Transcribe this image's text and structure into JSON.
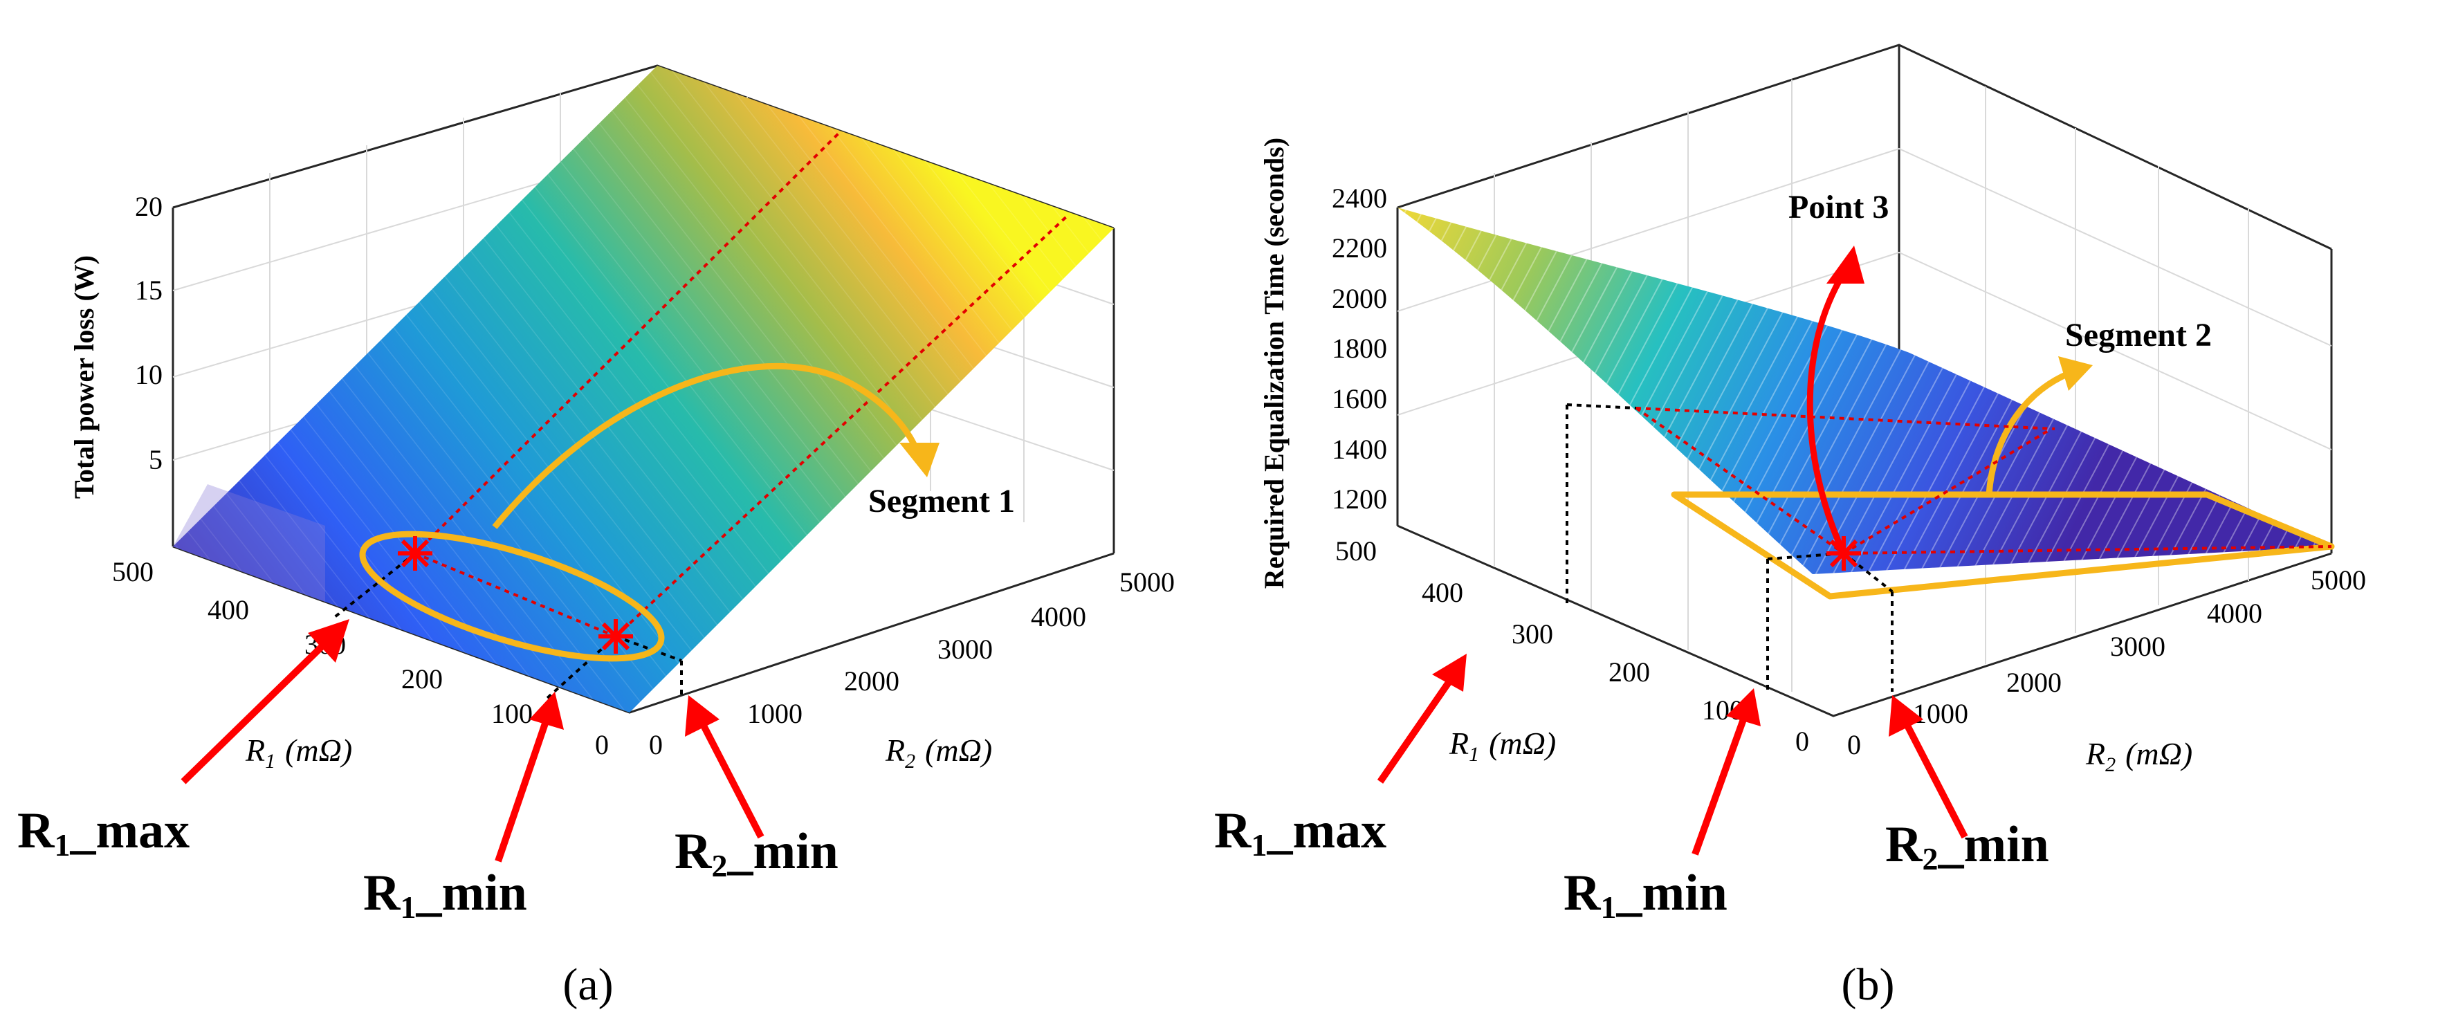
{
  "chart_data": [
    {
      "type": "surface3d",
      "panel_label": "(a)",
      "zlabel": "Total power loss (W)",
      "xlabel": "R",
      "xlabel_sub": "1",
      "xlabel_unit": "(mΩ)",
      "ylabel": "R",
      "ylabel_sub": "2",
      "ylabel_unit": "(mΩ)",
      "x_ticks": [
        "0",
        "100",
        "200",
        "300",
        "400",
        "500"
      ],
      "y_ticks": [
        "0",
        "1000",
        "2000",
        "3000",
        "4000",
        "5000"
      ],
      "z_ticks": [
        "5",
        "10",
        "15",
        "20"
      ],
      "xlim": [
        0,
        500
      ],
      "ylim": [
        0,
        5000
      ],
      "zlim": [
        0,
        20
      ],
      "colormap": "parula",
      "annotations": {
        "segment": "Segment 1",
        "r1_max": {
          "main": "R",
          "sub": "1",
          "rest": "_max"
        },
        "r1_min": {
          "main": "R",
          "sub": "1",
          "rest": "_min"
        },
        "r2_min": {
          "main": "R",
          "sub": "2",
          "rest": "_min"
        }
      }
    },
    {
      "type": "surface3d",
      "panel_label": "(b)",
      "zlabel": "Required Equalization Time (seconds)",
      "xlabel": "R",
      "xlabel_sub": "1",
      "xlabel_unit": "(mΩ)",
      "ylabel": "R",
      "ylabel_sub": "2",
      "ylabel_unit": "(mΩ)",
      "x_ticks": [
        "0",
        "100",
        "200",
        "300",
        "400",
        "500"
      ],
      "y_ticks": [
        "0",
        "1000",
        "2000",
        "3000",
        "4000",
        "5000"
      ],
      "z_ticks": [
        "1200",
        "1400",
        "1600",
        "1800",
        "2000",
        "2200",
        "2400"
      ],
      "xlim": [
        0,
        500
      ],
      "ylim": [
        0,
        5000
      ],
      "zlim": [
        1100,
        2400
      ],
      "colormap": "parula",
      "annotations": {
        "point": "Point 3",
        "segment": "Segment 2",
        "r1_max": {
          "main": "R",
          "sub": "1",
          "rest": "_max"
        },
        "r1_min": {
          "main": "R",
          "sub": "1",
          "rest": "_min"
        },
        "r2_min": {
          "main": "R",
          "sub": "2",
          "rest": "_min"
        }
      }
    }
  ],
  "colors": {
    "annotation_red": "#ff0000",
    "annotation_orange": "#f7b61a",
    "axis_line": "#262626",
    "grid": "#e0e0e0"
  }
}
